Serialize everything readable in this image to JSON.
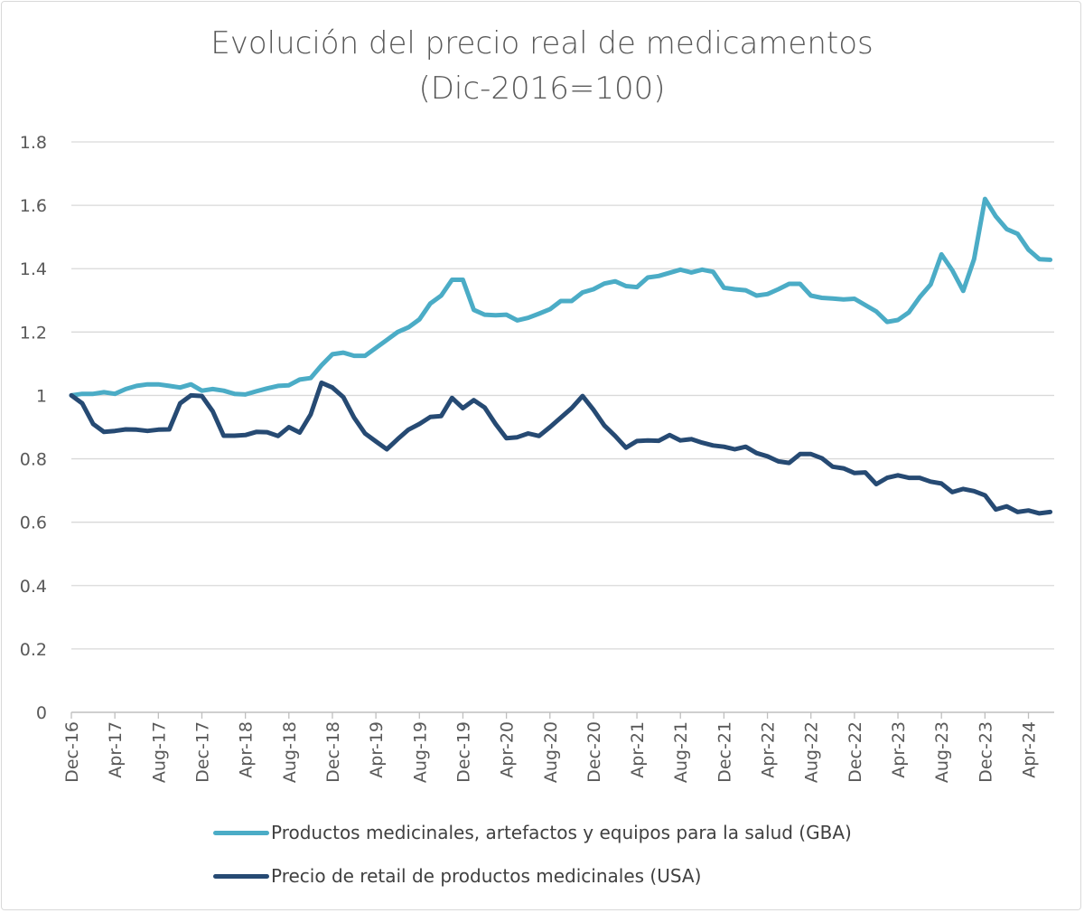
{
  "chart_data": {
    "type": "line",
    "title": "Evolución del precio real de medicamentos",
    "subtitle": "(Dic-2016=100)",
    "xlabel": "",
    "ylabel": "",
    "ylim": [
      0,
      1.8
    ],
    "yticks": [
      "0",
      "0.2",
      "0.4",
      "0.6",
      "0.8",
      "1",
      "1.2",
      "1.4",
      "1.6",
      "1.8"
    ],
    "grid": true,
    "legend_position": "bottom",
    "xtick_labels": [
      "Dec-16",
      "Apr-17",
      "Aug-17",
      "Dec-17",
      "Apr-18",
      "Aug-18",
      "Dec-18",
      "Apr-19",
      "Aug-19",
      "Dec-19",
      "Apr-20",
      "Aug-20",
      "Dec-20",
      "Apr-21",
      "Aug-21",
      "Dec-21",
      "Apr-22",
      "Aug-22",
      "Dec-22",
      "Apr-23",
      "Aug-23",
      "Dec-23",
      "Apr-24"
    ],
    "categories": [
      "Dec-16",
      "Jan-17",
      "Feb-17",
      "Mar-17",
      "Apr-17",
      "May-17",
      "Jun-17",
      "Jul-17",
      "Aug-17",
      "Sep-17",
      "Oct-17",
      "Nov-17",
      "Dec-17",
      "Jan-18",
      "Feb-18",
      "Mar-18",
      "Apr-18",
      "May-18",
      "Jun-18",
      "Jul-18",
      "Aug-18",
      "Sep-18",
      "Oct-18",
      "Nov-18",
      "Dec-18",
      "Jan-19",
      "Feb-19",
      "Mar-19",
      "Apr-19",
      "May-19",
      "Jun-19",
      "Jul-19",
      "Aug-19",
      "Sep-19",
      "Oct-19",
      "Nov-19",
      "Dec-19",
      "Jan-20",
      "Feb-20",
      "Mar-20",
      "Apr-20",
      "May-20",
      "Jun-20",
      "Jul-20",
      "Aug-20",
      "Sep-20",
      "Oct-20",
      "Nov-20",
      "Dec-20",
      "Jan-21",
      "Feb-21",
      "Mar-21",
      "Apr-21",
      "May-21",
      "Jun-21",
      "Jul-21",
      "Aug-21",
      "Sep-21",
      "Oct-21",
      "Nov-21",
      "Dec-21",
      "Jan-22",
      "Feb-22",
      "Mar-22",
      "Apr-22",
      "May-22",
      "Jun-22",
      "Jul-22",
      "Aug-22",
      "Sep-22",
      "Oct-22",
      "Nov-22",
      "Dec-22",
      "Jan-23",
      "Feb-23",
      "Mar-23",
      "Apr-23",
      "May-23",
      "Jun-23",
      "Jul-23",
      "Aug-23",
      "Sep-23",
      "Oct-23",
      "Nov-23",
      "Dec-23",
      "Jan-24",
      "Feb-24",
      "Mar-24",
      "Apr-24",
      "May-24",
      "Jun-24"
    ],
    "series": [
      {
        "name": "Productos medicinales, artefactos y equipos para la salud (GBA)",
        "color": "#4bacc6",
        "values": [
          1.0,
          1.005,
          1.005,
          1.01,
          1.005,
          1.02,
          1.03,
          1.035,
          1.035,
          1.03,
          1.025,
          1.035,
          1.015,
          1.02,
          1.015,
          1.005,
          1.003,
          1.013,
          1.022,
          1.03,
          1.032,
          1.05,
          1.055,
          1.095,
          1.13,
          1.135,
          1.125,
          1.125,
          1.15,
          1.175,
          1.2,
          1.215,
          1.24,
          1.29,
          1.315,
          1.365,
          1.365,
          1.27,
          1.255,
          1.253,
          1.255,
          1.237,
          1.245,
          1.258,
          1.272,
          1.298,
          1.298,
          1.325,
          1.335,
          1.353,
          1.36,
          1.345,
          1.342,
          1.372,
          1.377,
          1.387,
          1.397,
          1.388,
          1.397,
          1.39,
          1.34,
          1.335,
          1.332,
          1.315,
          1.32,
          1.335,
          1.352,
          1.352,
          1.315,
          1.308,
          1.306,
          1.303,
          1.305,
          1.285,
          1.265,
          1.232,
          1.238,
          1.262,
          1.31,
          1.35,
          1.445,
          1.395,
          1.33,
          1.43,
          1.62,
          1.565,
          1.525,
          1.51,
          1.46,
          1.43,
          1.428
        ]
      },
      {
        "name": "Precio de retail de productos medicinales (USA)",
        "color": "#264a73",
        "values": [
          1.0,
          0.975,
          0.91,
          0.885,
          0.888,
          0.893,
          0.892,
          0.888,
          0.892,
          0.893,
          0.975,
          1.0,
          0.998,
          0.95,
          0.873,
          0.873,
          0.875,
          0.885,
          0.884,
          0.872,
          0.9,
          0.883,
          0.94,
          1.04,
          1.025,
          0.995,
          0.93,
          0.88,
          0.855,
          0.83,
          0.862,
          0.892,
          0.91,
          0.932,
          0.935,
          0.992,
          0.96,
          0.985,
          0.962,
          0.91,
          0.865,
          0.868,
          0.88,
          0.872,
          0.9,
          0.93,
          0.96,
          0.998,
          0.955,
          0.905,
          0.872,
          0.835,
          0.856,
          0.858,
          0.857,
          0.875,
          0.858,
          0.862,
          0.851,
          0.842,
          0.838,
          0.83,
          0.838,
          0.818,
          0.808,
          0.792,
          0.787,
          0.815,
          0.815,
          0.802,
          0.775,
          0.77,
          0.755,
          0.757,
          0.72,
          0.74,
          0.748,
          0.74,
          0.74,
          0.728,
          0.722,
          0.695,
          0.705,
          0.698,
          0.685,
          0.64,
          0.65,
          0.632,
          0.637,
          0.628,
          0.632
        ]
      }
    ]
  }
}
